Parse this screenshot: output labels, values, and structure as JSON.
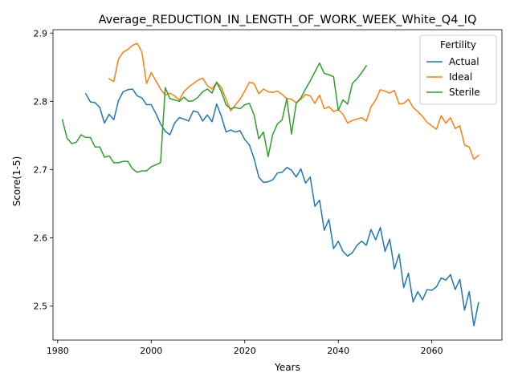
{
  "chart_data": {
    "type": "line",
    "title": "Average_REDUCTION_IN_LENGTH_OF_WORK_WEEK_White_Q4_IQ",
    "xlabel": "Years",
    "ylabel": "Score(1-5)",
    "xlim": [
      1979,
      2075
    ],
    "ylim": [
      2.45,
      2.905
    ],
    "xticks": [
      1980,
      2000,
      2020,
      2040,
      2060
    ],
    "yticks": [
      2.5,
      2.6,
      2.7,
      2.8,
      2.9
    ],
    "grid": false,
    "legend": {
      "title": "Fertility",
      "placement": "top-right"
    },
    "series": [
      {
        "name": "Actual",
        "color": "#1f77b4",
        "x": [
          1986,
          1987,
          1988,
          1989,
          1990,
          1991,
          1992,
          1993,
          1994,
          1995,
          1996,
          1997,
          1998,
          1999,
          2000,
          2001,
          2002,
          2003,
          2004,
          2005,
          2006,
          2007,
          2008,
          2009,
          2010,
          2011,
          2012,
          2013,
          2014,
          2015,
          2016,
          2017,
          2018,
          2019,
          2020,
          2021,
          2022,
          2023,
          2024,
          2025,
          2026,
          2027,
          2028,
          2029,
          2030,
          2031,
          2032,
          2033,
          2034,
          2035,
          2036,
          2037,
          2038,
          2039,
          2040,
          2041,
          2042,
          2043,
          2044,
          2045,
          2046,
          2047,
          2048,
          2049,
          2050,
          2051,
          2052,
          2053,
          2054,
          2055,
          2056,
          2057,
          2058,
          2059,
          2060,
          2061,
          2062,
          2063,
          2064,
          2065,
          2066,
          2067,
          2068,
          2069,
          2070
        ],
        "values": [
          2.811,
          2.799,
          2.798,
          2.791,
          2.768,
          2.781,
          2.773,
          2.801,
          2.814,
          2.817,
          2.818,
          2.808,
          2.805,
          2.795,
          2.795,
          2.782,
          2.767,
          2.756,
          2.751,
          2.768,
          2.776,
          2.774,
          2.771,
          2.786,
          2.784,
          2.771,
          2.78,
          2.77,
          2.796,
          2.778,
          2.755,
          2.758,
          2.755,
          2.757,
          2.744,
          2.736,
          2.716,
          2.689,
          2.681,
          2.682,
          2.685,
          2.695,
          2.696,
          2.703,
          2.699,
          2.689,
          2.701,
          2.68,
          2.689,
          2.646,
          2.655,
          2.611,
          2.627,
          2.584,
          2.595,
          2.58,
          2.573,
          2.578,
          2.589,
          2.595,
          2.589,
          2.612,
          2.597,
          2.615,
          2.58,
          2.598,
          2.554,
          2.576,
          2.527,
          2.548,
          2.506,
          2.521,
          2.509,
          2.524,
          2.523,
          2.528,
          2.541,
          2.538,
          2.546,
          2.524,
          2.539,
          2.494,
          2.521,
          2.471,
          2.505
        ]
      },
      {
        "name": "Ideal",
        "color": "#ff7f0e",
        "x": [
          1991,
          1992,
          1993,
          1994,
          1995,
          1996,
          1997,
          1998,
          1999,
          2000,
          2001,
          2002,
          2003,
          2004,
          2005,
          2006,
          2007,
          2008,
          2009,
          2010,
          2011,
          2012,
          2013,
          2014,
          2015,
          2016,
          2017,
          2018,
          2019,
          2020,
          2021,
          2022,
          2023,
          2024,
          2025,
          2026,
          2027,
          2028,
          2029,
          2030,
          2031,
          2032,
          2033,
          2034,
          2035,
          2036,
          2037,
          2038,
          2039,
          2040,
          2041,
          2042,
          2043,
          2044,
          2045,
          2046,
          2047,
          2048,
          2049,
          2050,
          2051,
          2052,
          2053,
          2054,
          2055,
          2056,
          2057,
          2058,
          2059,
          2060,
          2061,
          2062,
          2063,
          2064,
          2065,
          2066,
          2067,
          2068,
          2069,
          2070
        ],
        "values": [
          2.833,
          2.829,
          2.862,
          2.872,
          2.876,
          2.882,
          2.885,
          2.872,
          2.826,
          2.842,
          2.83,
          2.818,
          2.809,
          2.812,
          2.808,
          2.802,
          2.814,
          2.821,
          2.826,
          2.831,
          2.834,
          2.823,
          2.818,
          2.828,
          2.82,
          2.803,
          2.786,
          2.795,
          2.803,
          2.815,
          2.828,
          2.826,
          2.811,
          2.818,
          2.814,
          2.813,
          2.815,
          2.81,
          2.804,
          2.803,
          2.798,
          2.803,
          2.81,
          2.808,
          2.797,
          2.809,
          2.789,
          2.792,
          2.785,
          2.788,
          2.781,
          2.768,
          2.772,
          2.774,
          2.776,
          2.771,
          2.792,
          2.802,
          2.817,
          2.815,
          2.812,
          2.816,
          2.796,
          2.797,
          2.803,
          2.791,
          2.785,
          2.778,
          2.769,
          2.764,
          2.759,
          2.779,
          2.768,
          2.776,
          2.76,
          2.764,
          2.736,
          2.733,
          2.715,
          2.721
        ]
      },
      {
        "name": "Sterile",
        "color": "#2ca02c",
        "x": [
          1981,
          1982,
          1983,
          1984,
          1985,
          1986,
          1987,
          1988,
          1989,
          1990,
          1991,
          1992,
          1993,
          1994,
          1995,
          1996,
          1997,
          1998,
          1999,
          2000,
          2001,
          2002,
          2003,
          2004,
          2005,
          2006,
          2007,
          2008,
          2009,
          2010,
          2011,
          2012,
          2013,
          2014,
          2015,
          2016,
          2017,
          2018,
          2019,
          2020,
          2021,
          2022,
          2023,
          2024,
          2025,
          2026,
          2027,
          2028,
          2029,
          2030,
          2031,
          2032,
          2033,
          2034,
          2035,
          2036,
          2037,
          2038,
          2039,
          2040,
          2041,
          2042,
          2043,
          2044,
          2045,
          2046
        ],
        "values": [
          2.773,
          2.746,
          2.738,
          2.74,
          2.751,
          2.747,
          2.747,
          2.733,
          2.733,
          2.718,
          2.72,
          2.71,
          2.71,
          2.712,
          2.712,
          2.701,
          2.696,
          2.698,
          2.698,
          2.704,
          2.707,
          2.71,
          2.82,
          2.804,
          2.802,
          2.8,
          2.806,
          2.8,
          2.801,
          2.806,
          2.814,
          2.818,
          2.812,
          2.828,
          2.814,
          2.795,
          2.789,
          2.791,
          2.789,
          2.795,
          2.797,
          2.78,
          2.745,
          2.755,
          2.719,
          2.752,
          2.767,
          2.773,
          2.804,
          2.752,
          2.797,
          2.805,
          2.818,
          2.83,
          2.843,
          2.856,
          2.841,
          2.839,
          2.836,
          2.787,
          2.802,
          2.796,
          2.826,
          2.833,
          2.842,
          2.852
        ]
      }
    ]
  }
}
